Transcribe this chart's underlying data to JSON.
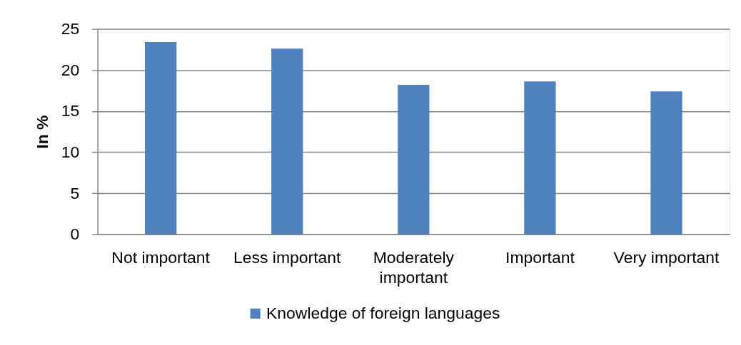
{
  "chart_data": {
    "type": "bar",
    "ylabel": "In %",
    "categories": [
      "Not important",
      "Less important",
      "Moderately important",
      "Important",
      "Very important"
    ],
    "series": [
      {
        "name": "Knowledge of foreign languages",
        "color": "#4f81bd",
        "values": [
          23.4,
          22.6,
          18.2,
          18.6,
          17.4
        ]
      }
    ],
    "ylim": [
      0,
      25
    ],
    "yticks": [
      0,
      5,
      10,
      15,
      20,
      25
    ],
    "grid": "y",
    "legend": "bottom"
  }
}
